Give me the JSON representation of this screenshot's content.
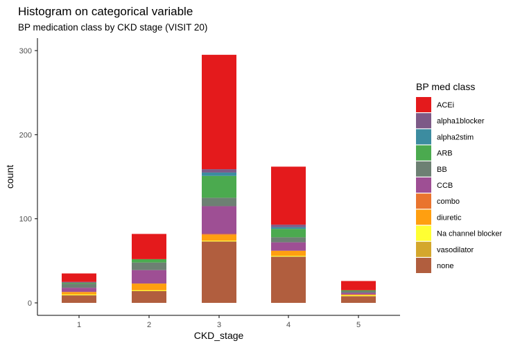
{
  "chart_data": {
    "type": "bar",
    "stacked": true,
    "title": "Histogram on categorical variable",
    "subtitle": "BP medication class by CKD stage (VISIT 20)",
    "xlabel": "CKD_stage",
    "ylabel": "count",
    "categories": [
      "1",
      "2",
      "3",
      "4",
      "5"
    ],
    "ylim": [
      0,
      320
    ],
    "yticks": [
      0,
      100,
      200,
      300
    ],
    "grid": false,
    "legend": {
      "title": "BP med class",
      "position": "right"
    },
    "series": [
      {
        "name": "none",
        "color": "#B15E3E",
        "values": [
          9,
          14,
          73,
          55,
          8
        ]
      },
      {
        "name": "vasodilator",
        "color": "#D4A72C",
        "values": [
          0,
          0,
          0,
          0,
          0
        ]
      },
      {
        "name": "Na channel blocker",
        "color": "#FFFF33",
        "values": [
          1,
          1,
          1,
          1,
          1
        ]
      },
      {
        "name": "diuretic",
        "color": "#FF9F10",
        "values": [
          3,
          8,
          7,
          6,
          1
        ]
      },
      {
        "name": "combo",
        "color": "#E9742E",
        "values": [
          0,
          0,
          1,
          0,
          0
        ]
      },
      {
        "name": "CCB",
        "color": "#9E4F94",
        "values": [
          5,
          16,
          33,
          10,
          2
        ]
      },
      {
        "name": "BB",
        "color": "#6D8073",
        "values": [
          5,
          9,
          10,
          6,
          2
        ]
      },
      {
        "name": "ARB",
        "color": "#4BAA4F",
        "values": [
          1,
          4,
          26,
          10,
          1
        ]
      },
      {
        "name": "alpha2stim",
        "color": "#3C8CA0",
        "values": [
          0,
          0,
          4,
          2,
          0
        ]
      },
      {
        "name": "alpha1blocker",
        "color": "#7D5A87",
        "values": [
          1,
          0,
          4,
          3,
          0
        ]
      },
      {
        "name": "ACEi",
        "color": "#E41A1C",
        "values": [
          10,
          30,
          136,
          69,
          11
        ]
      }
    ],
    "legend_order": [
      "ACEi",
      "alpha1blocker",
      "alpha2stim",
      "ARB",
      "BB",
      "CCB",
      "combo",
      "diuretic",
      "Na channel blocker",
      "vasodilator",
      "none"
    ]
  }
}
